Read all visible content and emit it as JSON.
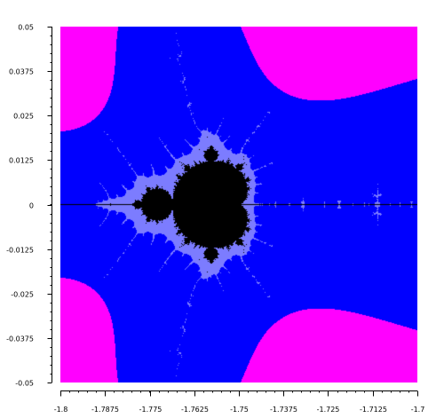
{
  "chart_data": {
    "type": "heatmap",
    "title": "",
    "xlabel": "",
    "ylabel": "",
    "xlim": [
      -1.8,
      -1.7
    ],
    "ylim": [
      -0.05,
      0.05
    ],
    "x_ticks": [
      "-1.8",
      "-1.7875",
      "-1.775",
      "-1.7625",
      "-1.75",
      "-1.7375",
      "-1.725",
      "-1.7125",
      "-1.7"
    ],
    "x_tick_values": [
      -1.8,
      -1.7875,
      -1.775,
      -1.7625,
      -1.75,
      -1.7375,
      -1.725,
      -1.7125,
      -1.7
    ],
    "y_ticks": [
      "0.05",
      "0.0375",
      "0.025",
      "0.0125",
      "0",
      "-0.0125",
      "-0.025",
      "-0.0375",
      "-0.05"
    ],
    "y_tick_values": [
      0.05,
      0.0375,
      0.025,
      0.0125,
      0,
      -0.0125,
      -0.025,
      -0.0375,
      -0.05
    ],
    "minor_ticks_per_major": 5,
    "grid": false,
    "legend": "none",
    "max_iterations": 120,
    "palette": [
      {
        "min_iter": 0,
        "color": "#ff00ff"
      },
      {
        "min_iter": 8,
        "color": "#0000ff"
      },
      {
        "min_iter": 22,
        "color": "#7c7cff"
      }
    ],
    "inside_color": "#000000"
  }
}
